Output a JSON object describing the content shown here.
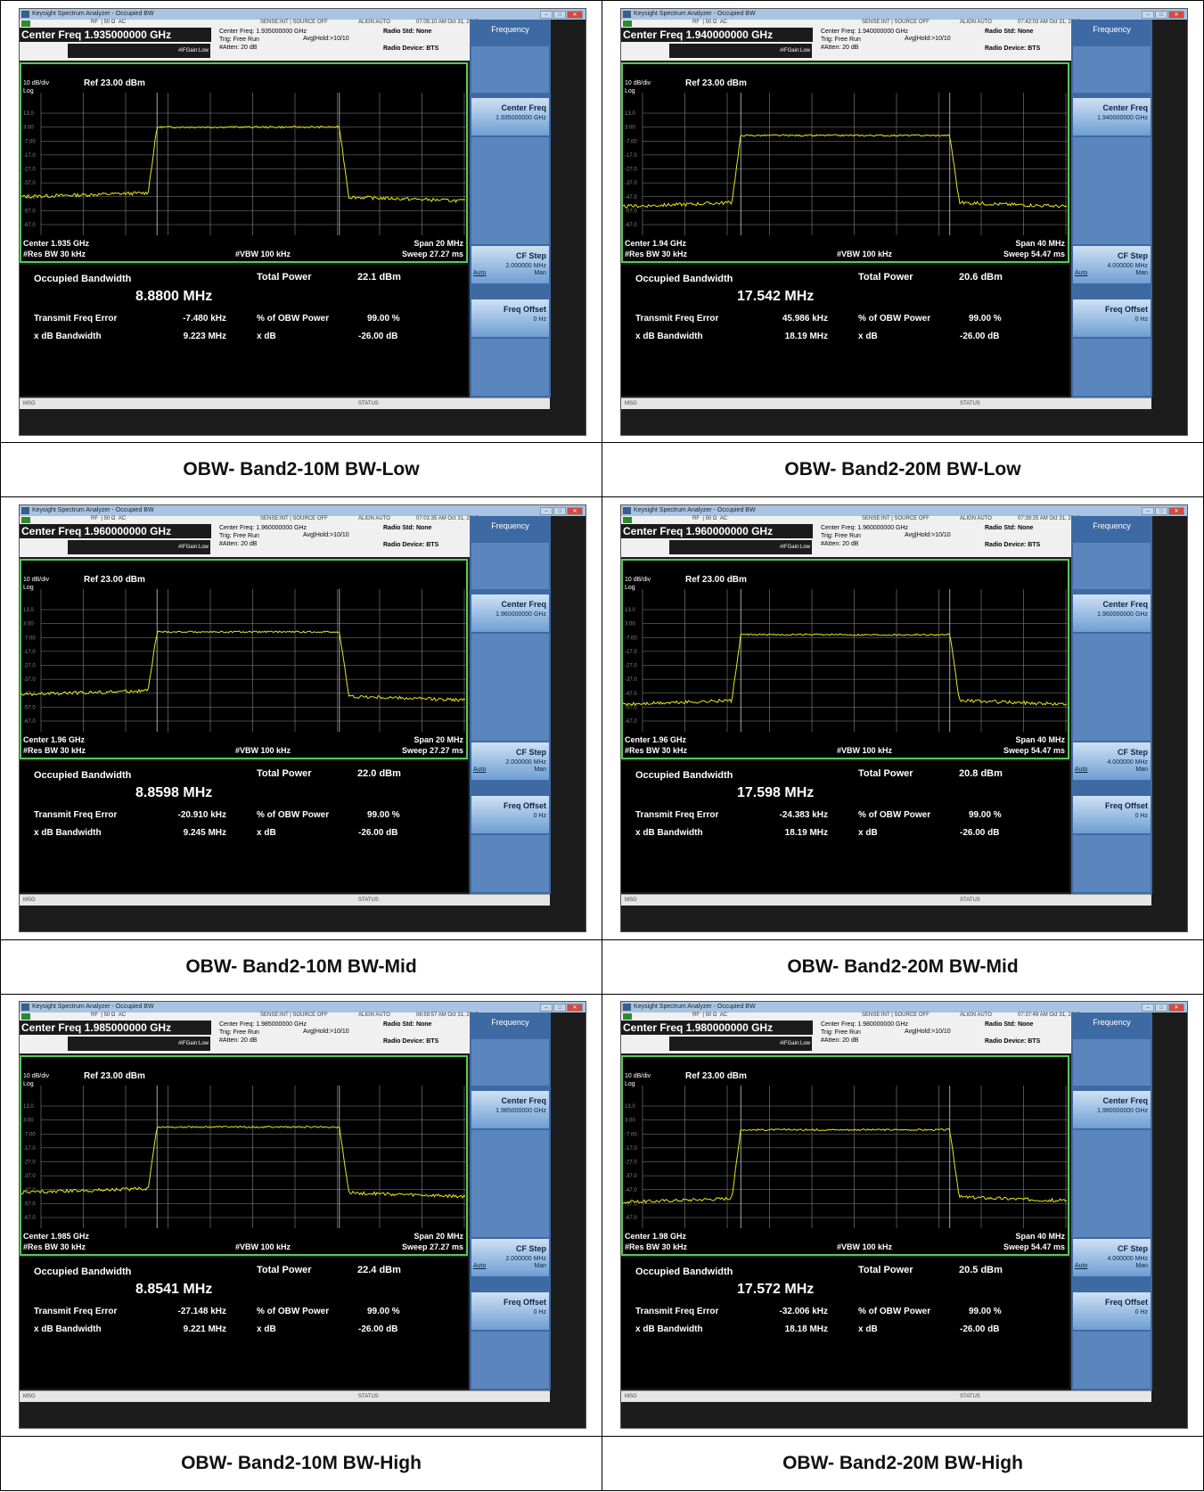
{
  "colors": {
    "trace": "#e6e61e",
    "grid": "#888888",
    "frame": "#56c956",
    "softkey_bg": "#3e6aa4"
  },
  "common": {
    "window_title": "Keysight Spectrum Analyzer - Occupied BW",
    "rf": "RF",
    "ohm": "50 Ω",
    "ac": "AC",
    "sense": "SENSE:INT",
    "source": "SOURCE OFF",
    "align": "ALIGN AUTO",
    "trig": "Trig: Free Run",
    "avg": "Avg|Hold:>10/10",
    "ifgain": "#IFGain:Low",
    "atten": "#Atten: 20 dB",
    "radio_std": "Radio Std: None",
    "radio_device": "Radio Device: BTS",
    "ref_div": "10 dB/div",
    "ref": "Ref 23.00 dBm",
    "log": "Log",
    "y_ticks": [
      "13.0",
      "3.00",
      "-7.00",
      "-17.0",
      "-27.0",
      "-37.0",
      "-47.0",
      "-57.0",
      "-67.0"
    ],
    "res_bw": "#Res BW  30 kHz",
    "vbw": "#VBW  100 kHz",
    "obw_label": "Occupied Bandwidth",
    "total_power_label": "Total Power",
    "tfe_label": "Transmit Freq Error",
    "pct_label": "% of OBW Power",
    "pct_value": "99.00 %",
    "xdb_bw_label": "x dB Bandwidth",
    "xdb_label": "x dB",
    "xdb_value": "-26.00 dB",
    "msg": "MSG",
    "status": "STATUS",
    "sk_title": "Frequency",
    "sk_center": "Center Freq",
    "sk_cfstep": "CF Step",
    "sk_auto": "Auto",
    "sk_man": "Man",
    "sk_offset": "Freq Offset",
    "sk_offset_val": "0 Hz"
  },
  "panels": [
    {
      "caption": "OBW- Band2-10M BW-Low",
      "time": "07:05:10 AM Oct 31, 2015",
      "cf_big": "Center Freq 1.935000000 GHz",
      "cf_small": "Center Freq: 1.935000000 GHz",
      "center": "Center  1.935 GHz",
      "span": "Span 20 MHz",
      "sweep": "Sweep  27.27 ms",
      "obw": "8.8800 MHz",
      "total_power": "22.1 dBm",
      "tfe": "-7.480 kHz",
      "xdb_bw": "9.223 MHz",
      "sk_cf_val": "1.935000000 GHz",
      "sk_step_val": "2.000000 MHz",
      "trace": {
        "floor_left": -47,
        "floor_right": -47,
        "plateau": 3.0,
        "x_left": 0.305,
        "x_right": 0.715
      }
    },
    {
      "caption": "OBW- Band2-20M BW-Low",
      "time": "07:42:03 AM Oct 31, 2015",
      "cf_big": "Center Freq 1.940000000 GHz",
      "cf_small": "Center Freq: 1.940000000 GHz",
      "center": "Center  1.94 GHz",
      "span": "Span 40 MHz",
      "sweep": "Sweep  54.47 ms",
      "obw": "17.542 MHz",
      "total_power": "20.6 dBm",
      "tfe": "45.986 kHz",
      "xdb_bw": "18.19 MHz",
      "sk_cf_val": "1.940000000 GHz",
      "sk_step_val": "4.000000 MHz",
      "trace": {
        "floor_left": -54,
        "floor_right": -51,
        "plateau": -3.0,
        "x_left": 0.265,
        "x_right": 0.735
      }
    },
    {
      "caption": "OBW- Band2-10M BW-Mid",
      "time": "07:01:35 AM Oct 31, 2015",
      "cf_big": "Center Freq 1.960000000 GHz",
      "cf_small": "Center Freq: 1.960000000 GHz",
      "center": "Center  1.96 GHz",
      "span": "Span 20 MHz",
      "sweep": "Sweep  27.27 ms",
      "obw": "8.8598 MHz",
      "total_power": "22.0 dBm",
      "tfe": "-20.910 kHz",
      "xdb_bw": "9.245 MHz",
      "sk_cf_val": "1.960000000 GHz",
      "sk_step_val": "2.000000 MHz",
      "trace": {
        "floor_left": -48,
        "floor_right": -49,
        "plateau": -3.0,
        "x_left": 0.305,
        "x_right": 0.715
      }
    },
    {
      "caption": "OBW- Band2-20M BW-Mid",
      "time": "07:39:25 AM Oct 31, 2015",
      "cf_big": "Center Freq 1.960000000 GHz",
      "cf_small": "Center Freq: 1.960000000 GHz",
      "center": "Center  1.96 GHz",
      "span": "Span 40 MHz",
      "sweep": "Sweep  54.47 ms",
      "obw": "17.598 MHz",
      "total_power": "20.8 dBm",
      "tfe": "-24.383 kHz",
      "xdb_bw": "18.19 MHz",
      "sk_cf_val": "1.960000000 GHz",
      "sk_step_val": "4.000000 MHz",
      "trace": {
        "floor_left": -55,
        "floor_right": -52,
        "plateau": -5.0,
        "x_left": 0.265,
        "x_right": 0.735
      }
    },
    {
      "caption": "OBW- Band2-10M BW-High",
      "time": "06:59:57 AM Oct 31, 2015",
      "cf_big": "Center Freq 1.985000000 GHz",
      "cf_small": "Center Freq: 1.985000000 GHz",
      "center": "Center  1.985 GHz",
      "span": "Span 20 MHz",
      "sweep": "Sweep  27.27 ms",
      "obw": "8.8541 MHz",
      "total_power": "22.4 dBm",
      "tfe": "-27.148 kHz",
      "xdb_bw": "9.221 MHz",
      "sk_cf_val": "1.985000000 GHz",
      "sk_step_val": "2.000000 MHz",
      "trace": {
        "floor_left": -49,
        "floor_right": -49,
        "plateau": -2.0,
        "x_left": 0.305,
        "x_right": 0.715
      }
    },
    {
      "caption": "OBW- Band2-20M BW-High",
      "time": "07:37:49 AM Oct 31, 2015",
      "cf_big": "Center Freq 1.980000000 GHz",
      "cf_small": "Center Freq: 1.980000000 GHz",
      "center": "Center  1.98 GHz",
      "span": "Span 40 MHz",
      "sweep": "Sweep  54.47 ms",
      "obw": "17.572 MHz",
      "total_power": "20.5 dBm",
      "tfe": "-32.006 kHz",
      "xdb_bw": "18.18 MHz",
      "sk_cf_val": "1.980000000 GHz",
      "sk_step_val": "4.000000 MHz",
      "trace": {
        "floor_left": -56,
        "floor_right": -52,
        "plateau": -4.0,
        "x_left": 0.265,
        "x_right": 0.735
      }
    }
  ]
}
